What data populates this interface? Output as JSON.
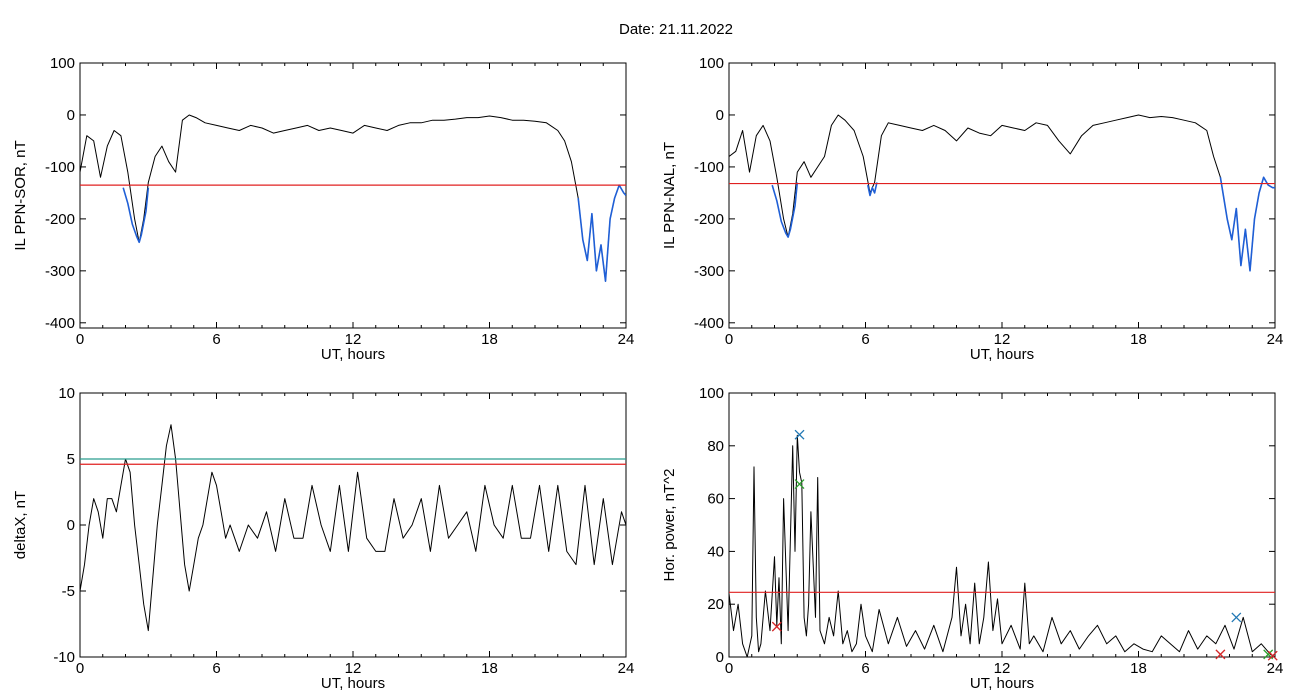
{
  "header": {
    "date_label": "Date:  21.11.2022"
  },
  "colors": {
    "trace": "#000000",
    "highlight": "#1f5fd6",
    "threshold": "#e02020",
    "threshold2": "#2a9d8f",
    "marker_blue": "#1f77b4",
    "marker_green": "#2ca02c",
    "marker_red": "#d62728"
  },
  "chart_data": [
    {
      "id": "ppn-sor",
      "type": "line",
      "ylabel": "IL PPN-SOR, nT",
      "xlabel": "UT, hours",
      "xlim": [
        0,
        24
      ],
      "ylim": [
        -410,
        100
      ],
      "xticks": [
        0,
        6,
        12,
        18,
        24
      ],
      "yticks": [
        100,
        0,
        -100,
        -200,
        -300,
        -400
      ],
      "threshold": -135,
      "series": [
        {
          "x": [
            0,
            0.3,
            0.6,
            0.9,
            1.2,
            1.5,
            1.8,
            2.1,
            2.4,
            2.6,
            2.8,
            3.0,
            3.3,
            3.6,
            3.9,
            4.2,
            4.5,
            4.8,
            5.1,
            5.5,
            6.0,
            6.5,
            7.0,
            7.5,
            8.0,
            8.5,
            9.0,
            9.5,
            10.0,
            10.5,
            11.0,
            11.5,
            12.0,
            12.5,
            13.0,
            13.5,
            14.0,
            14.5,
            15.0,
            15.5,
            16.0,
            16.5,
            17.0,
            17.5,
            18.0,
            18.5,
            19.0,
            19.5,
            20.0,
            20.5,
            21.0,
            21.3,
            21.6,
            21.9,
            22.1,
            22.3,
            22.5,
            22.7,
            22.9,
            23.1,
            23.3,
            23.5,
            23.7,
            23.9,
            24.0
          ],
          "y": [
            -110,
            -40,
            -50,
            -120,
            -60,
            -30,
            -40,
            -110,
            -200,
            -245,
            -200,
            -130,
            -80,
            -60,
            -90,
            -110,
            -10,
            0,
            -5,
            -15,
            -20,
            -25,
            -30,
            -20,
            -25,
            -35,
            -30,
            -25,
            -20,
            -30,
            -25,
            -30,
            -35,
            -20,
            -25,
            -30,
            -20,
            -15,
            -15,
            -10,
            -10,
            -8,
            -5,
            -5,
            -2,
            -5,
            -10,
            -10,
            -12,
            -15,
            -30,
            -50,
            -90,
            -160,
            -240,
            -280,
            -190,
            -300,
            -250,
            -320,
            -200,
            -160,
            -135,
            -150,
            -155
          ]
        },
        {
          "x": [
            1.9,
            2.1,
            2.3,
            2.5,
            2.6,
            2.7,
            2.9,
            3.0
          ],
          "y": [
            -140,
            -170,
            -210,
            -235,
            -245,
            -230,
            -185,
            -140
          ]
        },
        {
          "x": [
            21.9,
            22.1,
            22.3,
            22.5,
            22.7,
            22.9,
            23.1,
            23.3,
            23.5,
            23.7,
            23.9,
            24.0
          ],
          "y": [
            -160,
            -240,
            -280,
            -190,
            -300,
            -250,
            -320,
            -200,
            -160,
            -135,
            -150,
            -155
          ]
        }
      ]
    },
    {
      "id": "ppn-nal",
      "type": "line",
      "ylabel": "IL PPN-NAL, nT",
      "xlabel": "UT, hours",
      "xlim": [
        0,
        24
      ],
      "ylim": [
        -410,
        100
      ],
      "xticks": [
        0,
        6,
        12,
        18,
        24
      ],
      "yticks": [
        100,
        0,
        -100,
        -200,
        -300,
        -400
      ],
      "threshold": -132,
      "series": [
        {
          "x": [
            0,
            0.3,
            0.6,
            0.9,
            1.2,
            1.5,
            1.8,
            2.1,
            2.4,
            2.6,
            2.8,
            3.0,
            3.3,
            3.6,
            3.9,
            4.2,
            4.5,
            4.8,
            5.1,
            5.5,
            5.9,
            6.2,
            6.4,
            6.7,
            7.0,
            7.5,
            8.0,
            8.5,
            9.0,
            9.5,
            10.0,
            10.5,
            11.0,
            11.5,
            12.0,
            12.5,
            13.0,
            13.5,
            14.0,
            14.5,
            15.0,
            15.5,
            16.0,
            16.5,
            17.0,
            17.5,
            18.0,
            18.5,
            19.0,
            19.5,
            20.0,
            20.5,
            21.0,
            21.3,
            21.6,
            21.9,
            22.1,
            22.3,
            22.5,
            22.7,
            22.9,
            23.1,
            23.3,
            23.5,
            23.7,
            23.9,
            24.0
          ],
          "y": [
            -80,
            -70,
            -30,
            -110,
            -40,
            -20,
            -50,
            -120,
            -200,
            -235,
            -190,
            -110,
            -90,
            -120,
            -100,
            -80,
            -20,
            0,
            -10,
            -30,
            -80,
            -150,
            -130,
            -40,
            -15,
            -20,
            -25,
            -30,
            -20,
            -30,
            -50,
            -25,
            -35,
            -40,
            -20,
            -25,
            -30,
            -15,
            -20,
            -50,
            -75,
            -40,
            -20,
            -15,
            -10,
            -5,
            0,
            -5,
            -3,
            -5,
            -10,
            -15,
            -30,
            -80,
            -120,
            -200,
            -240,
            -180,
            -290,
            -220,
            -300,
            -200,
            -150,
            -120,
            -135,
            -140,
            -140
          ]
        },
        {
          "x": [
            1.9,
            2.1,
            2.3,
            2.5,
            2.6,
            2.7,
            2.9,
            3.0
          ],
          "y": [
            -135,
            -165,
            -205,
            -228,
            -235,
            -220,
            -175,
            -130
          ]
        },
        {
          "x": [
            6.1,
            6.2,
            6.3,
            6.4,
            6.5
          ],
          "y": [
            -135,
            -155,
            -140,
            -150,
            -130
          ]
        },
        {
          "x": [
            21.6,
            21.9,
            22.1,
            22.3,
            22.5,
            22.7,
            22.9,
            23.1,
            23.3,
            23.5,
            23.7,
            23.9,
            24.0
          ],
          "y": [
            -120,
            -200,
            -240,
            -180,
            -290,
            -220,
            -300,
            -200,
            -150,
            -120,
            -135,
            -140,
            -140
          ]
        }
      ]
    },
    {
      "id": "deltax",
      "type": "line",
      "ylabel": "deltaX, nT",
      "xlabel": "UT, hours",
      "xlim": [
        0,
        24
      ],
      "ylim": [
        -10,
        10
      ],
      "xticks": [
        0,
        6,
        12,
        18,
        24
      ],
      "yticks": [
        10,
        5,
        0,
        -5,
        -10
      ],
      "threshold": 4.6,
      "threshold2": 5.0,
      "series": [
        {
          "x": [
            0,
            0.2,
            0.4,
            0.6,
            0.8,
            1.0,
            1.2,
            1.4,
            1.6,
            1.8,
            2.0,
            2.2,
            2.4,
            2.6,
            2.8,
            3.0,
            3.2,
            3.4,
            3.6,
            3.8,
            4.0,
            4.2,
            4.4,
            4.6,
            4.8,
            5.0,
            5.2,
            5.4,
            5.6,
            5.8,
            6.0,
            6.2,
            6.4,
            6.6,
            6.8,
            7.0,
            7.4,
            7.8,
            8.2,
            8.6,
            9.0,
            9.4,
            9.8,
            10.2,
            10.6,
            11.0,
            11.4,
            11.8,
            12.2,
            12.6,
            13.0,
            13.4,
            13.8,
            14.2,
            14.6,
            15.0,
            15.4,
            15.8,
            16.2,
            16.6,
            17.0,
            17.4,
            17.8,
            18.2,
            18.6,
            19.0,
            19.4,
            19.8,
            20.2,
            20.6,
            21.0,
            21.4,
            21.8,
            22.2,
            22.6,
            23.0,
            23.4,
            23.8,
            24.0
          ],
          "y": [
            -5,
            -3,
            0,
            2,
            1,
            -1,
            2,
            2,
            1,
            3,
            5,
            4,
            0,
            -3,
            -6,
            -8,
            -4,
            0,
            3,
            6,
            7.6,
            5,
            1,
            -3,
            -5,
            -3,
            -1,
            0,
            2,
            4,
            3,
            1,
            -1,
            0,
            -1,
            -2,
            0,
            -1,
            1,
            -2,
            2,
            -1,
            -1,
            3,
            0,
            -2,
            3,
            -2,
            4,
            -1,
            -2,
            -2,
            2,
            -1,
            0,
            2,
            -2,
            3,
            -1,
            0,
            1,
            -2,
            3,
            0,
            -1,
            3,
            -1,
            -1,
            3,
            -2,
            3,
            -2,
            -3,
            3,
            -3,
            2,
            -3,
            1,
            0
          ]
        }
      ]
    },
    {
      "id": "hor-power",
      "type": "line",
      "ylabel": "Hor. power, nT^2",
      "xlabel": "UT, hours",
      "xlim": [
        0,
        24
      ],
      "ylim": [
        0,
        100
      ],
      "xticks": [
        0,
        6,
        12,
        18,
        24
      ],
      "yticks": [
        100,
        80,
        60,
        40,
        20,
        0
      ],
      "threshold": 24.5,
      "series": [
        {
          "x": [
            0,
            0.2,
            0.4,
            0.6,
            0.8,
            1.0,
            1.1,
            1.2,
            1.3,
            1.4,
            1.6,
            1.8,
            2.0,
            2.1,
            2.2,
            2.3,
            2.4,
            2.6,
            2.8,
            2.9,
            3.0,
            3.1,
            3.2,
            3.3,
            3.4,
            3.5,
            3.6,
            3.8,
            3.9,
            4.0,
            4.2,
            4.4,
            4.6,
            4.8,
            5.0,
            5.2,
            5.4,
            5.6,
            5.8,
            6.0,
            6.3,
            6.6,
            7.0,
            7.4,
            7.8,
            8.2,
            8.6,
            9.0,
            9.4,
            9.8,
            10.0,
            10.2,
            10.4,
            10.6,
            10.8,
            11.0,
            11.2,
            11.4,
            11.6,
            11.8,
            12.0,
            12.4,
            12.8,
            13.0,
            13.2,
            13.4,
            13.8,
            14.2,
            14.6,
            15.0,
            15.4,
            15.8,
            16.2,
            16.6,
            17.0,
            17.4,
            17.8,
            18.2,
            18.6,
            19.0,
            19.4,
            19.8,
            20.2,
            20.6,
            21.0,
            21.4,
            21.8,
            22.2,
            22.6,
            23.0,
            23.4,
            23.8,
            24.0
          ],
          "y": [
            24,
            10,
            20,
            5,
            0,
            8,
            72,
            15,
            2,
            5,
            25,
            10,
            38,
            12,
            30,
            5,
            60,
            10,
            80,
            40,
            84,
            70,
            66,
            15,
            8,
            20,
            55,
            15,
            68,
            10,
            5,
            15,
            8,
            25,
            5,
            10,
            2,
            5,
            20,
            8,
            2,
            18,
            5,
            15,
            4,
            10,
            3,
            12,
            2,
            15,
            34,
            8,
            20,
            5,
            28,
            5,
            15,
            36,
            10,
            22,
            5,
            12,
            3,
            28,
            5,
            8,
            2,
            15,
            5,
            10,
            3,
            8,
            12,
            5,
            8,
            2,
            5,
            3,
            2,
            8,
            5,
            2,
            10,
            3,
            8,
            5,
            12,
            3,
            15,
            2,
            5,
            1,
            0
          ]
        }
      ],
      "markers": [
        {
          "x": 3.1,
          "y": 84.2,
          "color": "blue"
        },
        {
          "x": 3.1,
          "y": 65.5,
          "color": "green"
        },
        {
          "x": 2.1,
          "y": 11.5,
          "color": "red"
        },
        {
          "x": 22.3,
          "y": 15.0,
          "color": "blue"
        },
        {
          "x": 21.6,
          "y": 1.0,
          "color": "red"
        },
        {
          "x": 23.7,
          "y": 1.0,
          "color": "green"
        },
        {
          "x": 23.9,
          "y": 0.5,
          "color": "red"
        }
      ]
    }
  ]
}
